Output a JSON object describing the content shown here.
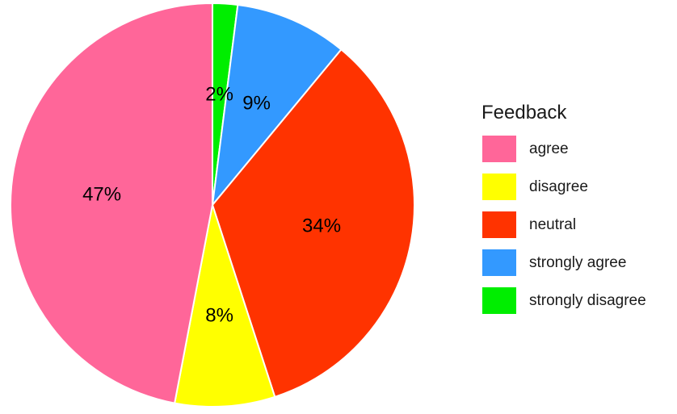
{
  "chart_data": {
    "type": "pie",
    "legend": {
      "title": "Feedback",
      "placement": "right"
    },
    "categories": [
      "agree",
      "disagree",
      "neutral",
      "strongly agree",
      "strongly disagree"
    ],
    "values": [
      47,
      8,
      34,
      9,
      2
    ],
    "labels": [
      "47%",
      "8%",
      "34%",
      "9%",
      "2%"
    ],
    "colors": [
      "#ff6699",
      "#ffff00",
      "#ff3300",
      "#3399ff",
      "#00ee00"
    ],
    "slice_order": [
      "strongly disagree",
      "strongly agree",
      "neutral",
      "disagree",
      "agree"
    ],
    "start": "top",
    "direction": "clockwise"
  }
}
